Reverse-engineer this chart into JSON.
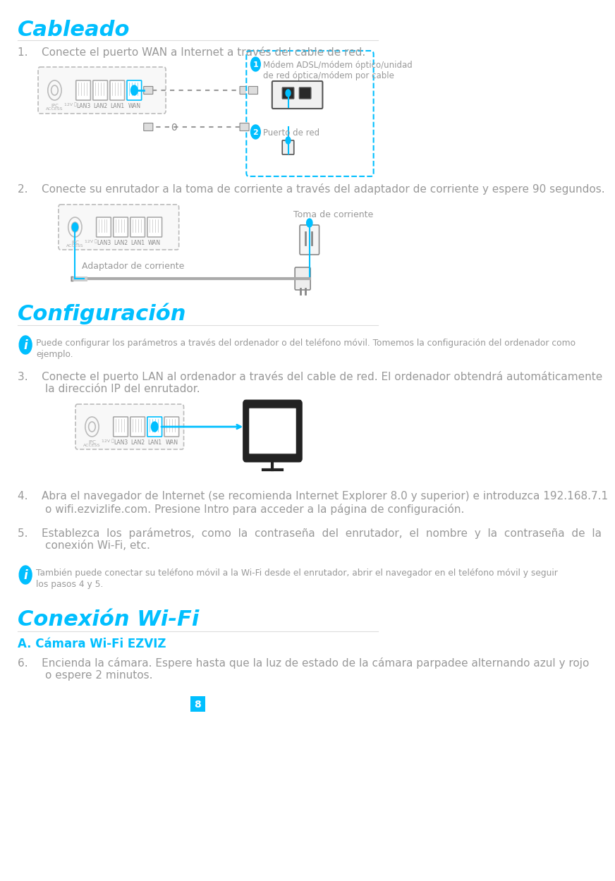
{
  "title_cableado": "Cableado",
  "title_configuracion": "Configuración",
  "title_conexion_wifi": "Conexión Wi-Fi",
  "subtitle_camara": "A. Cámara Wi-Fi EZVIZ",
  "cyan": "#00BFFF",
  "gray_text": "#999999",
  "dark": "#444444",
  "light_gray": "#cccccc",
  "step1": "1.    Conecte el puerto WAN a Internet a través del cable de red.",
  "step2": "2.    Conecte su enrutador a la toma de corriente a través del adaptador de corriente y espere 90 segundos.",
  "step3_l1": "3.    Conecte el puerto LAN al ordenador a través del cable de red. El ordenador obtendrá automáticamente",
  "step3_l2": "        la dirección IP del enrutador.",
  "step4_l1": "4.    Abra el navegador de Internet (se recomienda Internet Explorer 8.0 y superior) e introduzca 192.168.7.1",
  "step4_l2": "        o wifi.ezvizlife.com. Presione Intro para acceder a la página de configuración.",
  "step5_l1": "5.    Establezca  los  parámetros,  como  la  contraseña  del  enrutador,  el  nombre  y  la  contraseña  de  la",
  "step5_l2": "        conexión Wi-Fi, etc.",
  "step6_l1": "6.    Encienda la cámara. Espere hasta que la luz de estado de la cámara parpadee alternando azul y rojo",
  "step6_l2": "        o espere 2 minutos.",
  "info1_l1": "Puede configurar los parámetros a través del ordenador o del teléfono móvil. Tomemos la configuración del ordenador como",
  "info1_l2": "ejemplo.",
  "info2_l1": "También puede conectar su teléfono móvil a la Wi-Fi desde el enrutador, abrir el navegador en el teléfono móvil y seguir",
  "info2_l2": "los pasos 4 y 5.",
  "modem_l1": "Módem ADSL/módem óptico/unidad",
  "modem_l2": "de red óptica/módem por cable",
  "puerto_red": "Puerto de red",
  "toma": "Toma de corriente",
  "adaptador": "Adaptador de corriente",
  "page_num": "8",
  "port_labels": [
    "LAN3",
    "LAN2",
    "LAN1",
    "WAN"
  ]
}
